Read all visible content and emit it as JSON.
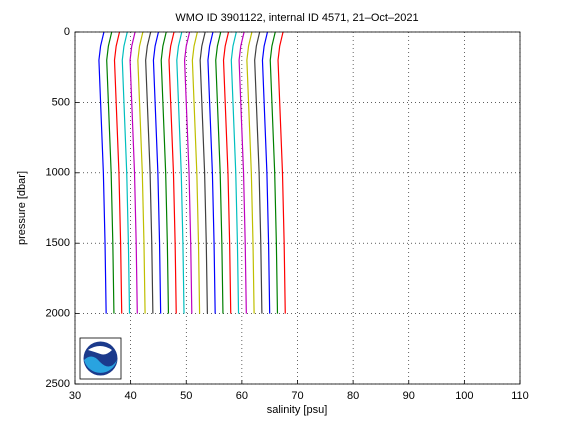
{
  "chart_data": {
    "type": "line",
    "title": "WMO ID 3901122, internal ID 4571, 21–Oct–2021",
    "x_label": "salinity [psu]",
    "y_label": "pressure [dbar]",
    "xlim": [
      30,
      110
    ],
    "xticks": [
      30,
      40,
      50,
      60,
      70,
      80,
      90,
      100,
      110
    ],
    "ylim": [
      2500,
      0
    ],
    "yticks": [
      0,
      500,
      1000,
      1500,
      2000,
      2500
    ],
    "grid": true,
    "y": [
      0,
      100,
      200,
      500,
      1000,
      1500,
      2000
    ],
    "series": [
      {
        "color": "#0000ff",
        "values": [
          35.2,
          34.6,
          34.3,
          34.6,
          35.1,
          35.4,
          35.6
        ]
      },
      {
        "color": "#008000",
        "values": [
          36.6,
          36.0,
          35.7,
          36.0,
          36.5,
          36.8,
          37.0
        ]
      },
      {
        "color": "#ff0000",
        "values": [
          38.0,
          37.4,
          37.1,
          37.4,
          37.9,
          38.2,
          38.4
        ]
      },
      {
        "color": "#00bfbf",
        "values": [
          39.4,
          38.8,
          38.5,
          38.8,
          39.3,
          39.6,
          39.8
        ]
      },
      {
        "color": "#bf00bf",
        "values": [
          40.8,
          40.2,
          39.9,
          40.2,
          40.7,
          41.0,
          41.2
        ]
      },
      {
        "color": "#bfbf00",
        "values": [
          42.2,
          41.6,
          41.3,
          41.6,
          42.1,
          42.4,
          42.6
        ]
      },
      {
        "color": "#404040",
        "values": [
          43.6,
          43.0,
          42.7,
          43.0,
          43.5,
          43.8,
          44.0
        ]
      },
      {
        "color": "#0000ff",
        "values": [
          45.0,
          44.4,
          44.1,
          44.4,
          44.9,
          45.2,
          45.4
        ]
      },
      {
        "color": "#008000",
        "values": [
          46.4,
          45.8,
          45.5,
          45.8,
          46.3,
          46.6,
          46.8
        ]
      },
      {
        "color": "#ff0000",
        "values": [
          47.8,
          47.2,
          46.9,
          47.2,
          47.7,
          48.0,
          48.2
        ]
      },
      {
        "color": "#00bfbf",
        "values": [
          49.2,
          48.6,
          48.3,
          48.6,
          49.1,
          49.4,
          49.6
        ]
      },
      {
        "color": "#bf00bf",
        "values": [
          50.6,
          50.0,
          49.7,
          50.0,
          50.5,
          50.8,
          51.0
        ]
      },
      {
        "color": "#bfbf00",
        "values": [
          52.0,
          51.4,
          51.1,
          51.4,
          51.9,
          52.2,
          52.4
        ]
      },
      {
        "color": "#404040",
        "values": [
          53.4,
          52.8,
          52.5,
          52.8,
          53.3,
          53.6,
          53.8
        ]
      },
      {
        "color": "#0000ff",
        "values": [
          54.8,
          54.2,
          53.9,
          54.2,
          54.7,
          55.0,
          55.2
        ]
      },
      {
        "color": "#008000",
        "values": [
          56.2,
          55.6,
          55.3,
          55.6,
          56.1,
          56.4,
          56.6
        ]
      },
      {
        "color": "#ff0000",
        "values": [
          57.6,
          57.0,
          56.7,
          57.0,
          57.5,
          57.8,
          58.0
        ]
      },
      {
        "color": "#00bfbf",
        "values": [
          59.0,
          58.4,
          58.1,
          58.4,
          58.9,
          59.2,
          59.4
        ]
      },
      {
        "color": "#bf00bf",
        "values": [
          60.4,
          59.8,
          59.5,
          59.8,
          60.3,
          60.6,
          60.8
        ]
      },
      {
        "color": "#bfbf00",
        "values": [
          61.8,
          61.2,
          60.9,
          61.2,
          61.7,
          62.0,
          62.2
        ]
      },
      {
        "color": "#404040",
        "values": [
          63.2,
          62.6,
          62.3,
          62.6,
          63.1,
          63.4,
          63.6
        ]
      },
      {
        "color": "#0000ff",
        "values": [
          64.6,
          64.0,
          63.7,
          64.0,
          64.5,
          64.8,
          65.0
        ]
      },
      {
        "color": "#008000",
        "values": [
          66.0,
          65.4,
          65.1,
          65.4,
          65.9,
          66.2,
          66.4
        ]
      },
      {
        "color": "#ff0000",
        "values": [
          67.4,
          66.8,
          66.5,
          66.8,
          67.3,
          67.6,
          67.8
        ]
      }
    ]
  }
}
